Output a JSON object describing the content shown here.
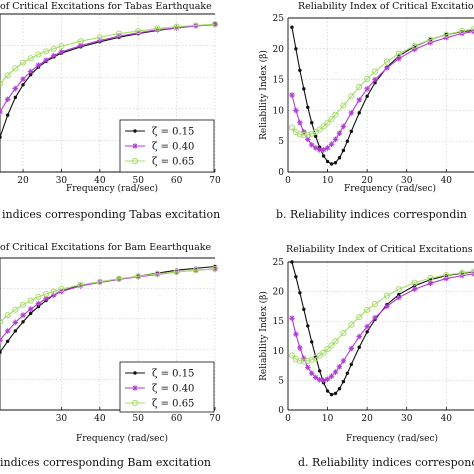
{
  "colors": {
    "zeta_015": "#111111",
    "zeta_040": "#b23bd6",
    "zeta_065": "#a8dc6a"
  },
  "chart_data": [
    {
      "type": "line",
      "title": "of Critical Excitations for Tabas Earthquake",
      "xlabel": "Frequency (rad/sec)",
      "ylabel": "",
      "caption": "indices corresponding Tabas excitation",
      "x_ticks": [
        "20",
        "30",
        "40",
        "50",
        "60",
        "70"
      ],
      "y_ticks": [],
      "xlim": [
        14,
        70
      ],
      "ylim": [
        0,
        25
      ],
      "legend": {
        "placement": "bottom-right"
      },
      "series": [
        {
          "name": "ζ = 0.15",
          "marker": "dot",
          "color": "#111111",
          "x": [
            14,
            16,
            18,
            20,
            22,
            24,
            26,
            28,
            30,
            35,
            40,
            45,
            50,
            55,
            60,
            65,
            70
          ],
          "y": [
            5.5,
            9,
            11.8,
            13.8,
            15.4,
            16.6,
            17.5,
            18.2,
            18.8,
            19.8,
            20.6,
            21.3,
            21.9,
            22.4,
            22.8,
            23.1,
            23.4
          ]
        },
        {
          "name": "ζ = 0.40",
          "marker": "star",
          "color": "#b23bd6",
          "x": [
            14,
            16,
            18,
            20,
            22,
            24,
            26,
            28,
            30,
            35,
            40,
            45,
            50,
            55,
            60,
            65,
            70
          ],
          "y": [
            9.5,
            11.5,
            13.2,
            14.7,
            15.9,
            16.9,
            17.7,
            18.4,
            19,
            20,
            20.8,
            21.5,
            22,
            22.5,
            22.8,
            23.1,
            23.3
          ]
        },
        {
          "name": "ζ = 0.65",
          "marker": "circle",
          "color": "#a8dc6a",
          "x": [
            14,
            16,
            18,
            20,
            22,
            24,
            26,
            28,
            30,
            35,
            40,
            45,
            50,
            55,
            60,
            65,
            70
          ],
          "y": [
            14,
            15.3,
            16.4,
            17.3,
            18,
            18.6,
            19.1,
            19.5,
            19.9,
            20.7,
            21.3,
            21.9,
            22.3,
            22.7,
            23,
            23.2,
            23.4
          ]
        }
      ]
    },
    {
      "type": "line",
      "title": "Reliability Index of Critical Excitations f",
      "xlabel": "Frequency (rad/sec)",
      "ylabel": "Reliability Index (β)",
      "caption": "b. Reliability indices correspondin",
      "x_ticks": [
        "0",
        "10",
        "20",
        "30",
        "40"
      ],
      "y_ticks": [
        "0",
        "5",
        "10",
        "15",
        "20",
        "25"
      ],
      "xlim": [
        0,
        47
      ],
      "ylim": [
        0,
        25
      ],
      "legend": {
        "placement": "none"
      },
      "series": [
        {
          "name": "ζ = 0.15",
          "marker": "dot",
          "color": "#111111",
          "x": [
            1,
            2,
            3,
            4,
            5,
            6,
            7,
            8,
            9,
            10,
            11,
            12,
            13,
            14,
            15,
            16,
            18,
            20,
            22,
            25,
            28,
            32,
            36,
            40,
            44,
            47
          ],
          "y": [
            23.5,
            20,
            16.5,
            13.5,
            10.5,
            8,
            5.8,
            4,
            2.6,
            1.7,
            1.3,
            1.5,
            2.3,
            3.5,
            5,
            6.6,
            9.6,
            12.3,
            14.5,
            17,
            18.8,
            20.4,
            21.5,
            22.3,
            22.8,
            23
          ]
        },
        {
          "name": "ζ = 0.40",
          "marker": "star",
          "color": "#b23bd6",
          "x": [
            1,
            2,
            3,
            4,
            5,
            6,
            7,
            8,
            9,
            10,
            11,
            12,
            13,
            14,
            16,
            18,
            20,
            22,
            25,
            28,
            32,
            36,
            40,
            44,
            47
          ],
          "y": [
            12.5,
            10,
            8,
            6.5,
            5.3,
            4.4,
            3.9,
            3.6,
            3.6,
            3.9,
            4.5,
            5.3,
            6.3,
            7.4,
            9.6,
            11.7,
            13.5,
            15,
            16.9,
            18.4,
            19.9,
            21,
            21.8,
            22.5,
            22.8
          ]
        },
        {
          "name": "ζ = 0.65",
          "marker": "circle",
          "color": "#a8dc6a",
          "x": [
            1,
            2,
            3,
            4,
            5,
            6,
            7,
            8,
            9,
            10,
            11,
            12,
            14,
            16,
            18,
            20,
            22,
            25,
            28,
            32,
            36,
            40,
            44,
            47
          ],
          "y": [
            7.2,
            6.5,
            6.1,
            6,
            6,
            6.2,
            6.5,
            6.9,
            7.4,
            8,
            8.6,
            9.3,
            10.8,
            12.3,
            13.8,
            15.1,
            16.3,
            17.9,
            19.2,
            20.5,
            21.5,
            22.3,
            22.9,
            23.2
          ]
        }
      ]
    },
    {
      "type": "line",
      "title": "of Critical Excitations for Bam Eearthquake",
      "xlabel": "Frequency (rad/sec)",
      "ylabel": "",
      "caption": "indices corresponding Bam excitation",
      "x_ticks": [
        "30",
        "40",
        "50",
        "60",
        "70"
      ],
      "y_ticks": [],
      "xlim": [
        14,
        70
      ],
      "ylim": [
        0,
        25
      ],
      "legend": {
        "placement": "bottom-right"
      },
      "series": [
        {
          "name": "ζ = 0.15",
          "marker": "dot",
          "color": "#111111",
          "x": [
            14,
            16,
            18,
            20,
            22,
            24,
            26,
            28,
            30,
            35,
            40,
            45,
            50,
            55,
            60,
            65,
            70
          ],
          "y": [
            9.5,
            11.3,
            13,
            14.5,
            15.9,
            17,
            18,
            18.9,
            19.6,
            20.5,
            21,
            21.5,
            22,
            22.5,
            23,
            23.3,
            23.6
          ]
        },
        {
          "name": "ζ = 0.40",
          "marker": "star",
          "color": "#b23bd6",
          "x": [
            14,
            16,
            18,
            20,
            22,
            24,
            26,
            28,
            30,
            35,
            40,
            45,
            50,
            55,
            60,
            65,
            70
          ],
          "y": [
            11.5,
            13,
            14.4,
            15.6,
            16.6,
            17.5,
            18.3,
            18.9,
            19.5,
            20.4,
            21,
            21.5,
            21.9,
            22.3,
            22.7,
            23,
            23.2
          ]
        },
        {
          "name": "ζ = 0.65",
          "marker": "circle",
          "color": "#a8dc6a",
          "x": [
            14,
            16,
            18,
            20,
            22,
            24,
            26,
            28,
            30,
            35,
            40,
            45,
            50,
            55,
            60,
            65,
            70
          ],
          "y": [
            14.5,
            15.6,
            16.5,
            17.3,
            18,
            18.6,
            19.1,
            19.5,
            19.9,
            20.6,
            21.1,
            21.6,
            22,
            22.4,
            22.7,
            23,
            23.2
          ]
        }
      ]
    },
    {
      "type": "line",
      "title": "Reliability Index of Critical Excitations f",
      "xlabel": "Frequency (rad/sec)",
      "ylabel": "Reliability Index (β)",
      "caption": "d. Reliability indices correspondin",
      "x_ticks": [
        "0",
        "10",
        "20",
        "30",
        "40"
      ],
      "y_ticks": [
        "0",
        "5",
        "10",
        "15",
        "20",
        "25"
      ],
      "xlim": [
        0,
        47
      ],
      "ylim": [
        0,
        25
      ],
      "legend": {
        "placement": "none"
      },
      "series": [
        {
          "name": "ζ = 0.15",
          "marker": "dot",
          "color": "#111111",
          "x": [
            1,
            2,
            3,
            4,
            5,
            6,
            7,
            8,
            9,
            10,
            11,
            12,
            13,
            14,
            15,
            16,
            18,
            20,
            22,
            25,
            28,
            32,
            36,
            40,
            44,
            47
          ],
          "y": [
            25,
            22.5,
            19.8,
            17,
            14.2,
            11.5,
            9,
            6.6,
            4.6,
            3.2,
            2.6,
            2.8,
            3.6,
            4.8,
            6.2,
            7.7,
            10.6,
            13.2,
            15.3,
            17.8,
            19.5,
            21,
            22,
            22.7,
            23.1,
            23.3
          ]
        },
        {
          "name": "ζ = 0.40",
          "marker": "star",
          "color": "#b23bd6",
          "x": [
            1,
            2,
            3,
            4,
            5,
            6,
            7,
            8,
            9,
            10,
            11,
            12,
            13,
            14,
            16,
            18,
            20,
            22,
            25,
            28,
            32,
            36,
            40,
            44,
            47
          ],
          "y": [
            15.5,
            12.8,
            10.5,
            8.7,
            7.2,
            6.2,
            5.5,
            5.1,
            5,
            5.2,
            5.7,
            6.4,
            7.3,
            8.3,
            10.4,
            12.4,
            14.1,
            15.6,
            17.5,
            19,
            20.4,
            21.4,
            22.2,
            22.7,
            23
          ]
        },
        {
          "name": "ζ = 0.65",
          "marker": "circle",
          "color": "#a8dc6a",
          "x": [
            1,
            2,
            3,
            4,
            5,
            6,
            7,
            8,
            9,
            10,
            11,
            12,
            14,
            16,
            18,
            20,
            22,
            25,
            28,
            32,
            36,
            40,
            44,
            47
          ],
          "y": [
            9.2,
            8.6,
            8.3,
            8.2,
            8.3,
            8.5,
            8.8,
            9.2,
            9.7,
            10.3,
            10.9,
            11.6,
            13,
            14.4,
            15.7,
            16.9,
            17.9,
            19.3,
            20.4,
            21.5,
            22.3,
            22.8,
            23.2,
            23.4
          ]
        }
      ]
    }
  ]
}
